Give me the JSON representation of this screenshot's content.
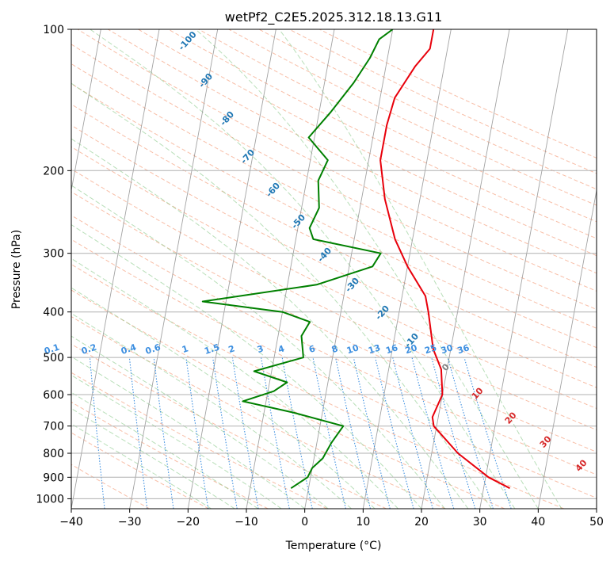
{
  "chart_data": {
    "type": "line",
    "title": "wetPf2_C2E5.2025.312.18.13.G11",
    "xlabel": "Temperature (°C)",
    "ylabel": "Pressure (hPa)",
    "xlim": [
      -40,
      50
    ],
    "ylim": [
      1050,
      100
    ],
    "y_scale": "log",
    "x_ticks": [
      "−40",
      "−30",
      "−20",
      "−10",
      "0",
      "10",
      "20",
      "30",
      "40",
      "50"
    ],
    "y_ticks": [
      {
        "p": 100,
        "label": "100"
      },
      {
        "p": 200,
        "label": "200"
      },
      {
        "p": 300,
        "label": "300"
      },
      {
        "p": 400,
        "label": "400"
      },
      {
        "p": 500,
        "label": "500"
      },
      {
        "p": 600,
        "label": "600"
      },
      {
        "p": 700,
        "label": "700"
      },
      {
        "p": 800,
        "label": "800"
      },
      {
        "p": 900,
        "label": "900"
      },
      {
        "p": 1000,
        "label": "1000"
      }
    ],
    "grid": true,
    "series": [
      {
        "color": "#e8000b",
        "points": [
          [
            34.5,
            950
          ],
          [
            30.5,
            900
          ],
          [
            24.5,
            800
          ],
          [
            19.5,
            700
          ],
          [
            19.0,
            670
          ],
          [
            20.0,
            600
          ],
          [
            19.0,
            530
          ],
          [
            17.0,
            480
          ],
          [
            15.0,
            400
          ],
          [
            14.0,
            370
          ],
          [
            10.0,
            320
          ],
          [
            7.0,
            280
          ],
          [
            4.0,
            230
          ],
          [
            2.0,
            190
          ],
          [
            2.0,
            160
          ],
          [
            2.5,
            140
          ],
          [
            5.0,
            120
          ],
          [
            7.0,
            110
          ],
          [
            7.0,
            100
          ]
        ]
      },
      {
        "color": "#008000",
        "points": [
          [
            -3.0,
            950
          ],
          [
            -0.5,
            900
          ],
          [
            0.0,
            860
          ],
          [
            1.5,
            820
          ],
          [
            2.5,
            760
          ],
          [
            4.0,
            700
          ],
          [
            -5.0,
            655
          ],
          [
            -14.0,
            620
          ],
          [
            -9.0,
            590
          ],
          [
            -7.0,
            565
          ],
          [
            -13.0,
            535
          ],
          [
            -5.0,
            500
          ],
          [
            -6.0,
            450
          ],
          [
            -5.0,
            420
          ],
          [
            -10.0,
            400
          ],
          [
            -24.0,
            380
          ],
          [
            -5.0,
            350
          ],
          [
            4.0,
            320
          ],
          [
            5.0,
            300
          ],
          [
            -7.0,
            280
          ],
          [
            -8.0,
            265
          ],
          [
            -7.0,
            240
          ],
          [
            -8.0,
            210
          ],
          [
            -7.0,
            190
          ],
          [
            -11.0,
            170
          ],
          [
            -8.0,
            150
          ],
          [
            -5.0,
            130
          ],
          [
            -3.0,
            115
          ],
          [
            -2.0,
            105
          ],
          [
            0.0,
            100
          ]
        ]
      }
    ],
    "isotherm_labels": [
      "-100",
      "-90",
      "-80",
      "-70",
      "-60",
      "-50",
      "-40",
      "-30",
      "-20",
      "-10",
      "0",
      "10",
      "20",
      "30",
      "40"
    ],
    "mixing_ratio_labels": [
      "0.1",
      "0.2",
      "0.4",
      "0.6",
      "1",
      "1.5",
      "2",
      "3",
      "4",
      "6",
      "8",
      "10",
      "13",
      "16",
      "20",
      "25",
      "30",
      "36"
    ]
  }
}
